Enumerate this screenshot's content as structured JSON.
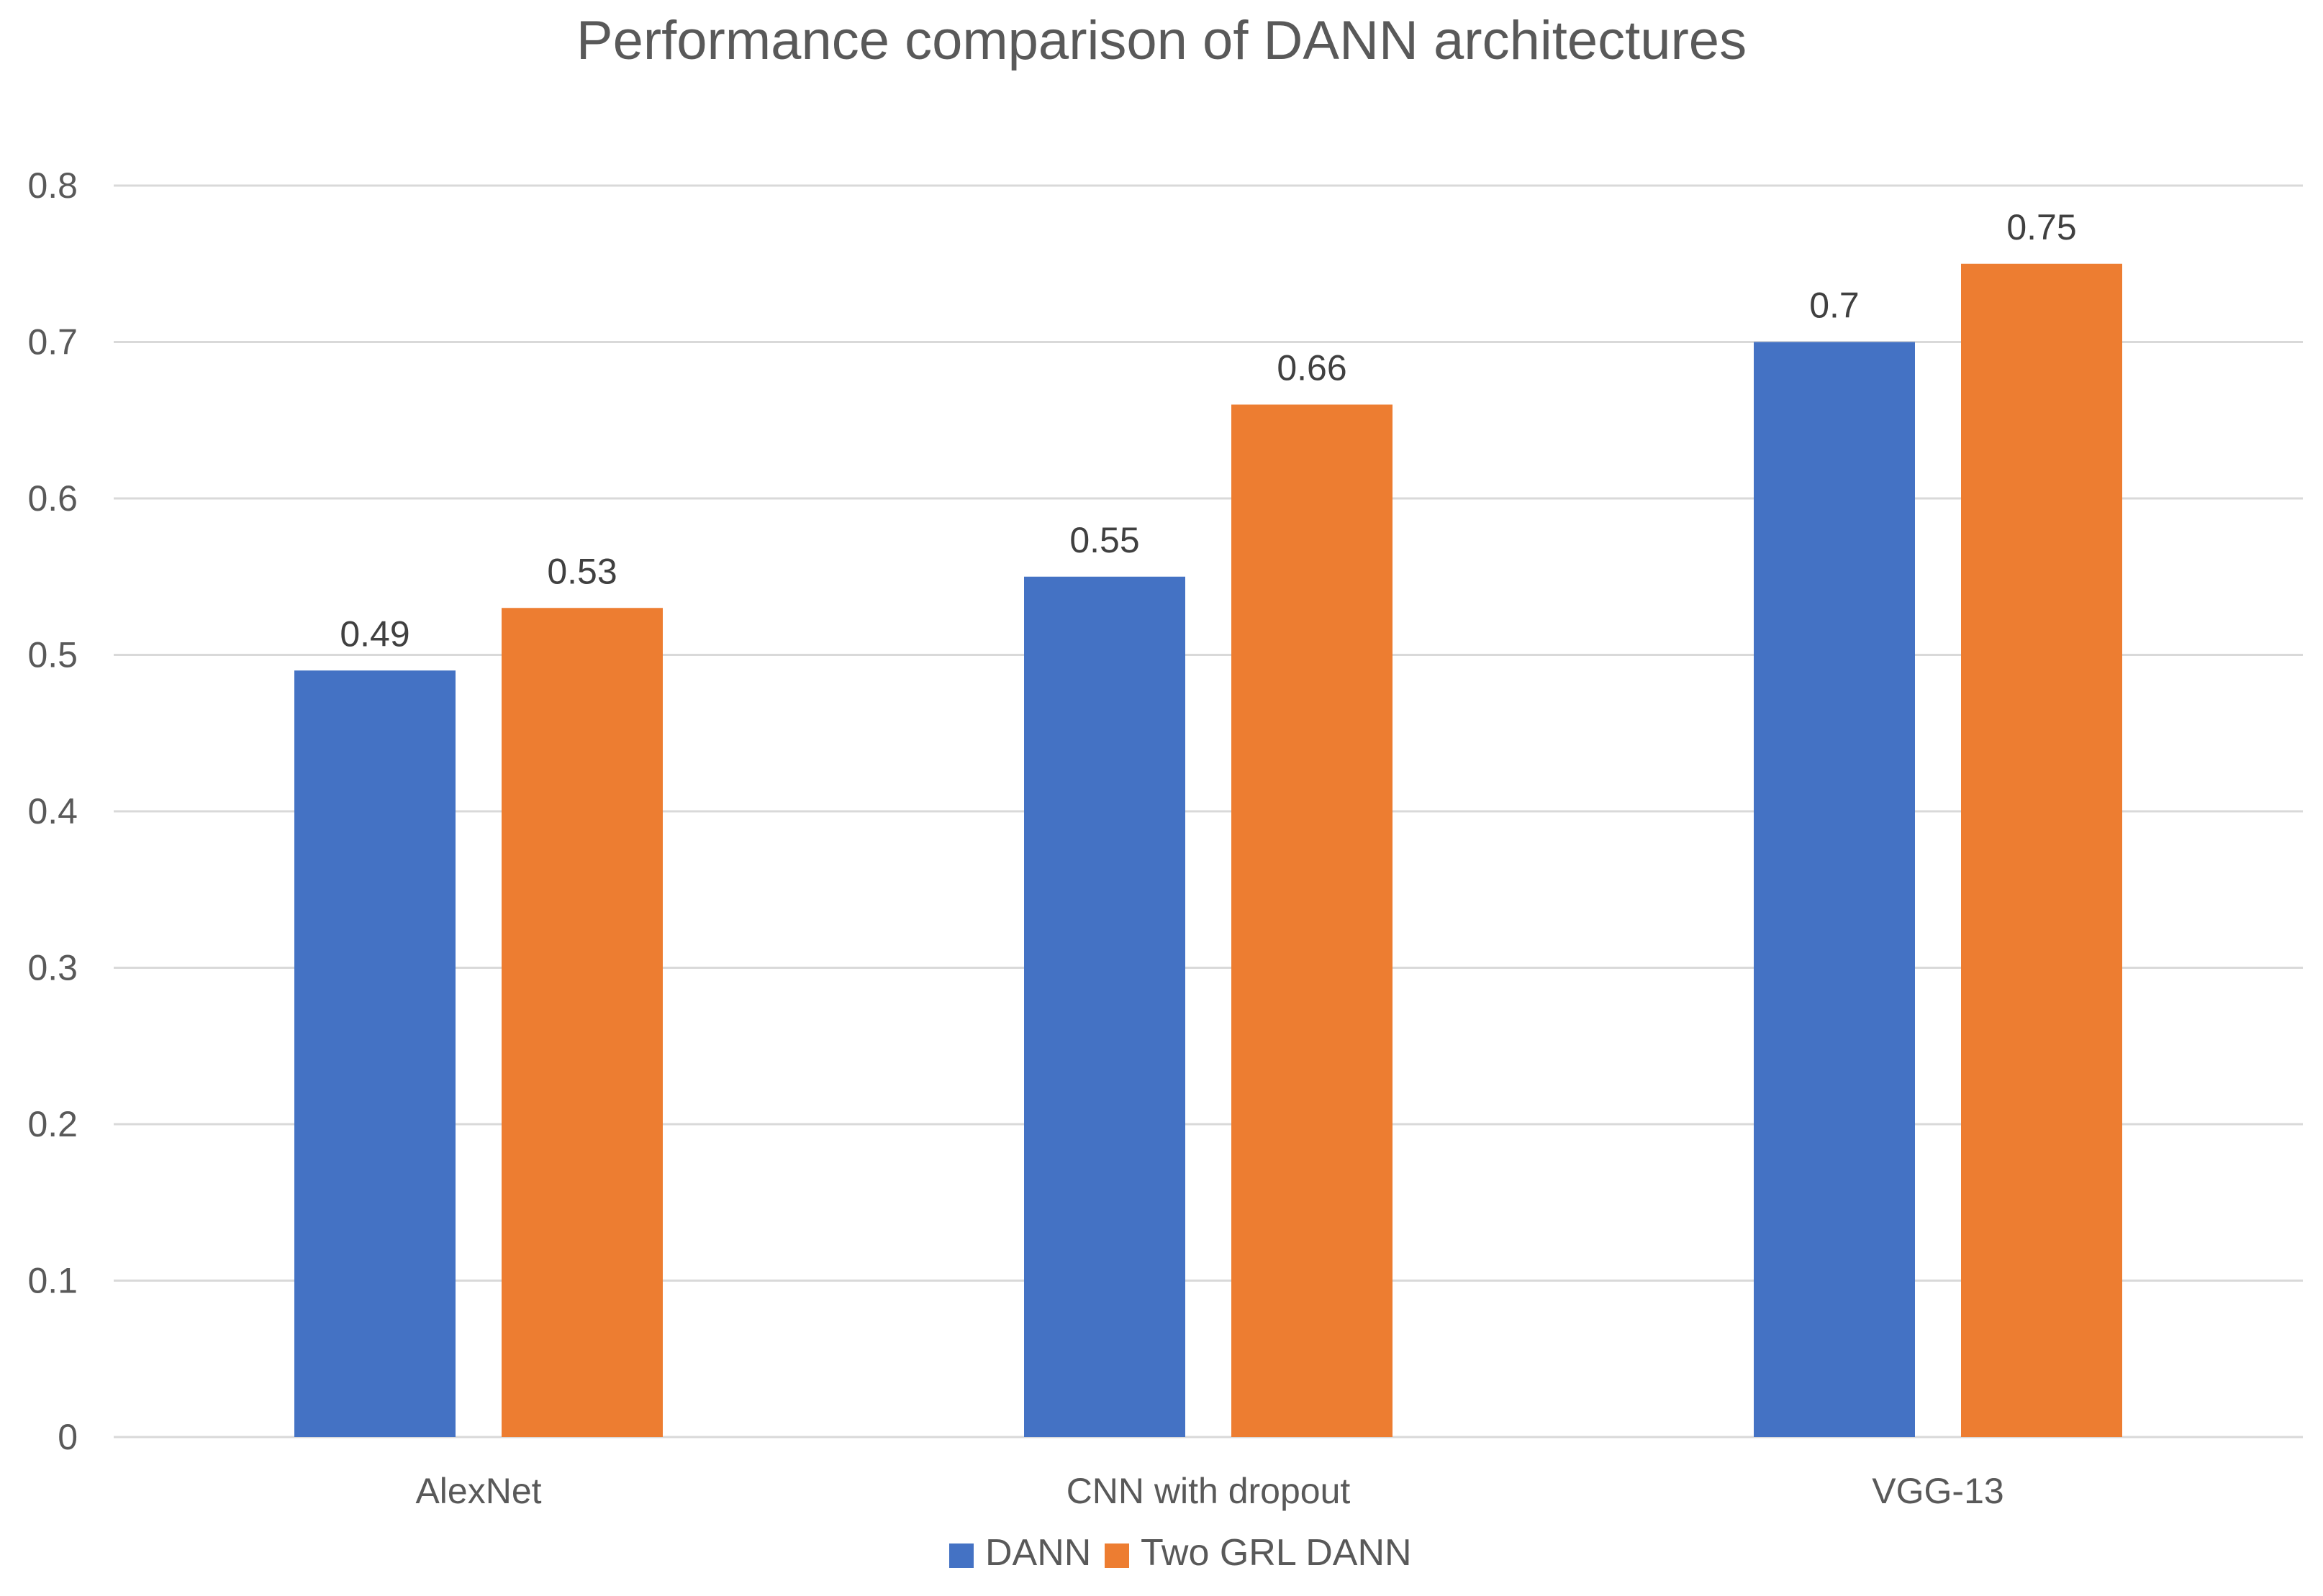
{
  "chart_data": {
    "type": "bar",
    "title": "Performance comparison of DANN architectures",
    "xlabel": "",
    "ylabel": "",
    "categories": [
      "AlexNet",
      "CNN with dropout",
      "VGG-13"
    ],
    "series": [
      {
        "name": "DANN",
        "color": "#4472C4",
        "values": [
          0.49,
          0.55,
          0.7
        ],
        "labels": [
          "0.49",
          "0.55",
          "0.7"
        ]
      },
      {
        "name": "Two GRL DANN",
        "color": "#ED7D31",
        "values": [
          0.53,
          0.66,
          0.75
        ],
        "labels": [
          "0.53",
          "0.66",
          "0.75"
        ]
      }
    ],
    "ylim": [
      0,
      0.8
    ],
    "yticks": [
      0,
      0.1,
      0.2,
      0.3,
      0.4,
      0.5,
      0.6,
      0.7,
      0.8
    ],
    "ytick_labels": [
      "0",
      "0.1",
      "0.2",
      "0.3",
      "0.4",
      "0.5",
      "0.6",
      "0.7",
      "0.8"
    ],
    "grid": true,
    "legend_position": "bottom"
  }
}
